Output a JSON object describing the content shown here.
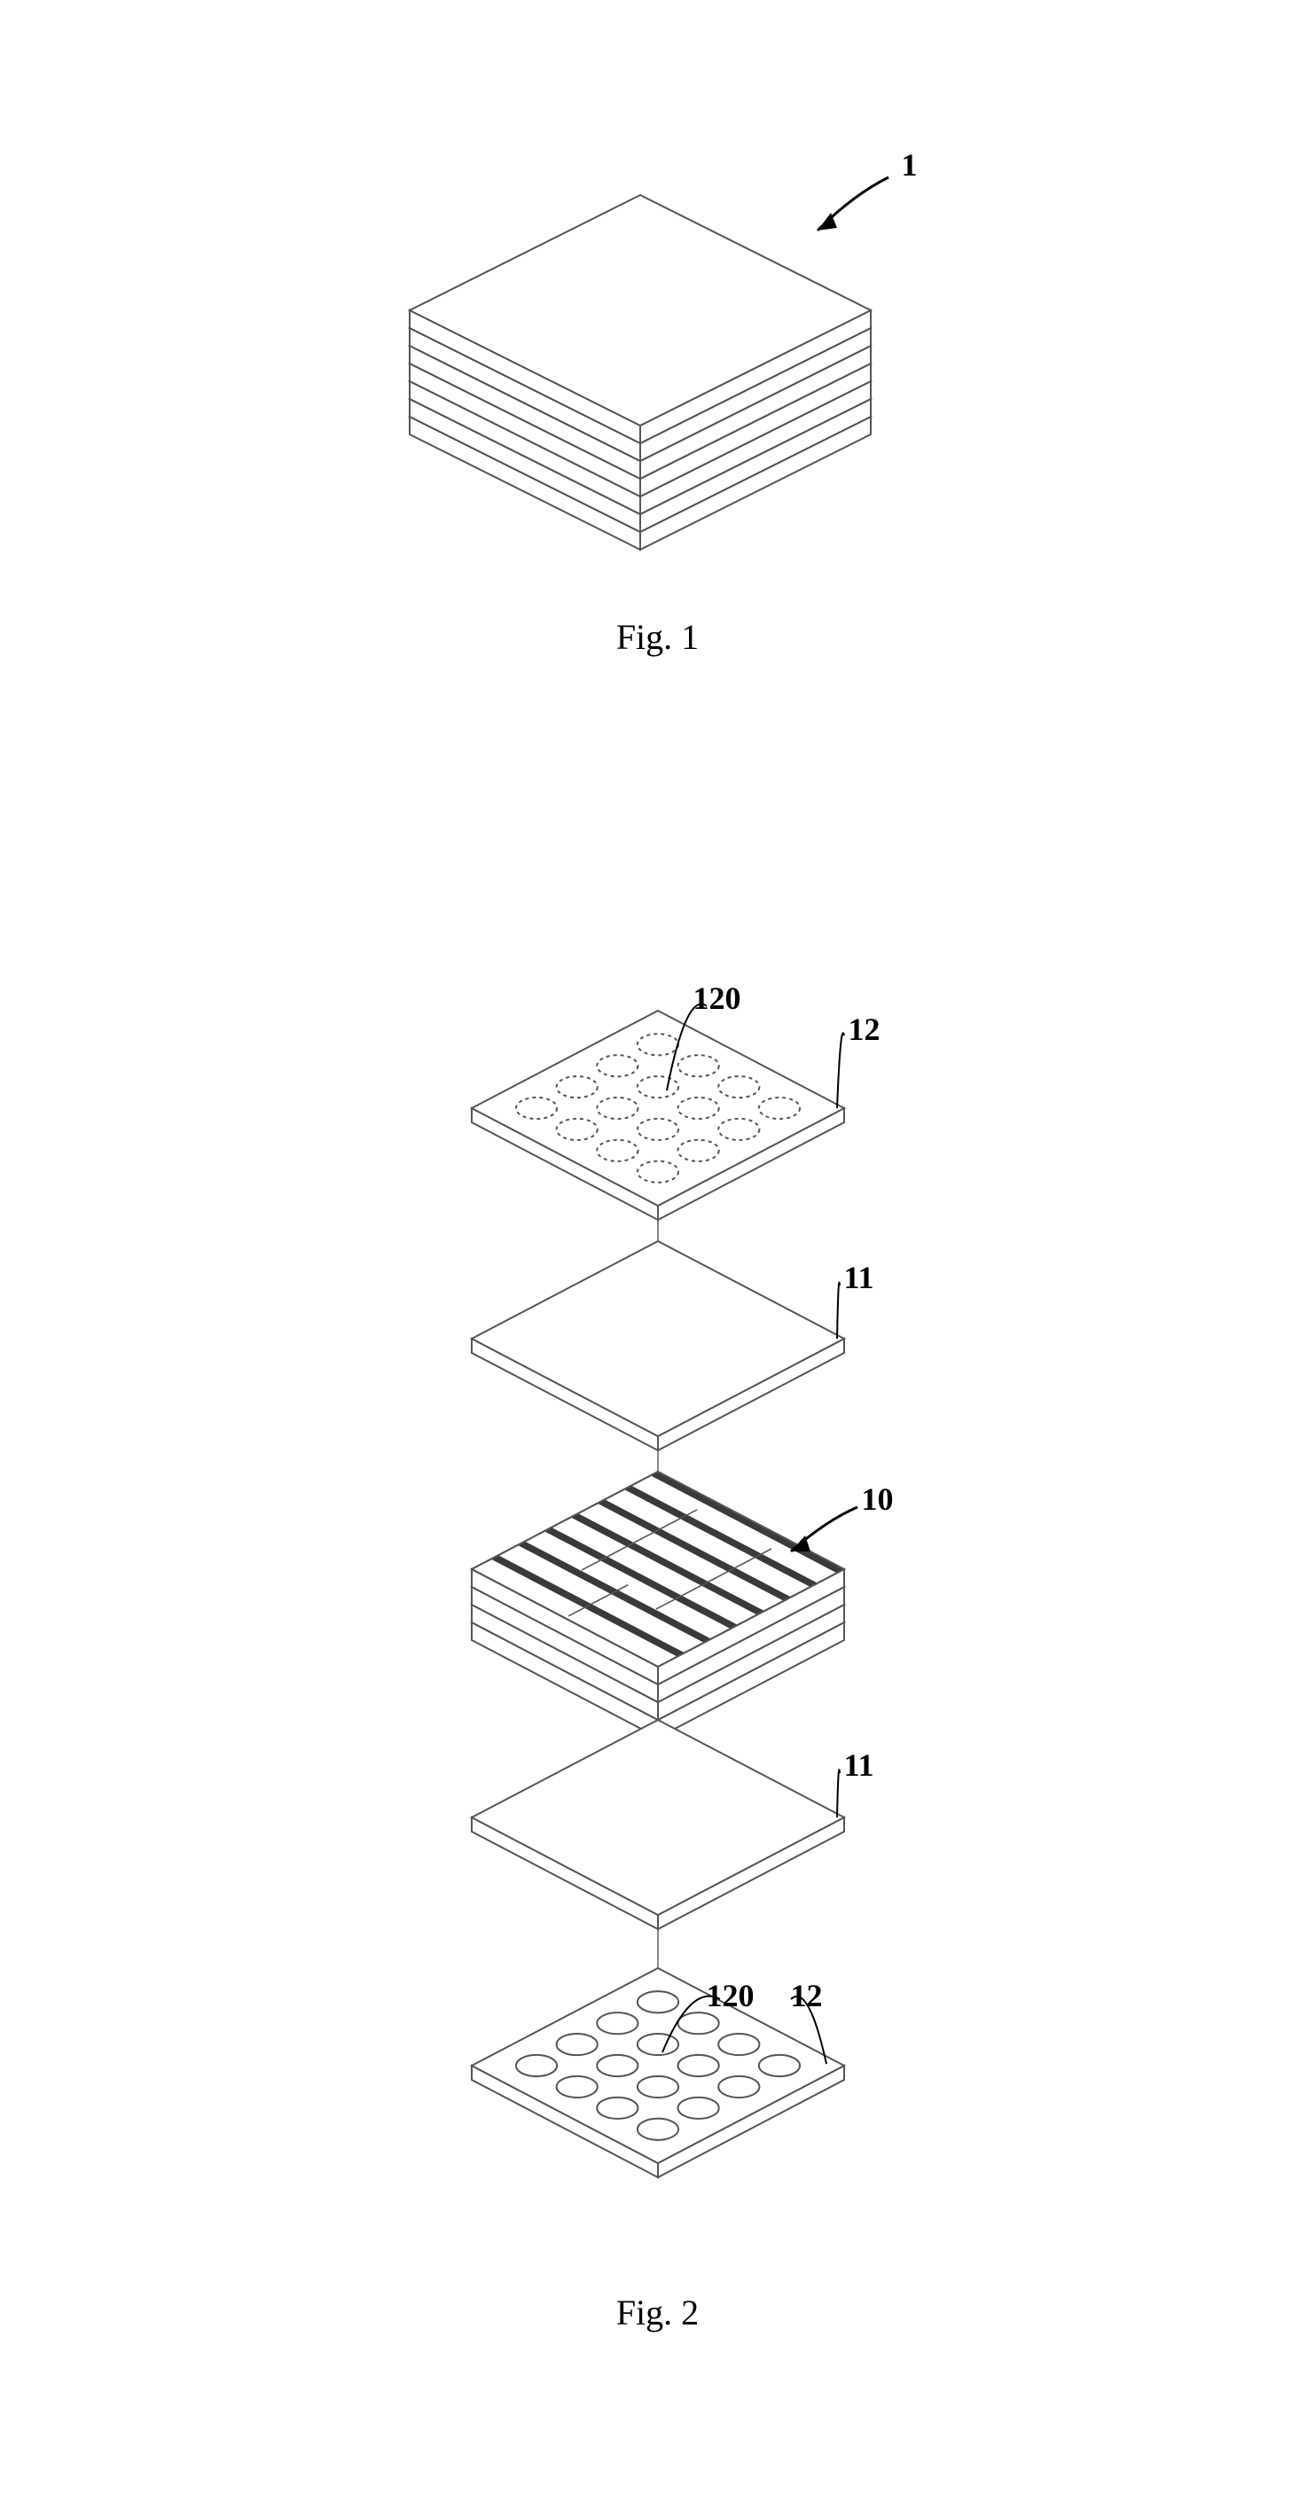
{
  "figure1": {
    "caption": "Fig. 1",
    "assembly_label": "1",
    "layer_count": 7,
    "stroke": "#555555",
    "fill": "#ffffff",
    "stroke_width": 2
  },
  "figure2": {
    "caption": "Fig. 2",
    "stroke": "#555555",
    "fill": "#ffffff",
    "stroke_width": 2,
    "layers": [
      {
        "label": "12",
        "sublabel": "120",
        "type": "circle-plate",
        "circle_style": "dashed"
      },
      {
        "label": "11",
        "type": "plain-plate"
      },
      {
        "label": "10",
        "type": "patterned-stack"
      },
      {
        "label": "11",
        "type": "plain-plate"
      },
      {
        "label": "12",
        "sublabel": "120",
        "type": "circle-plate",
        "circle_style": "solid"
      }
    ],
    "circle_grid": {
      "rows": 4,
      "cols": 4,
      "radius_ratio": 0.11
    },
    "vertical_axis_color": "#888888"
  }
}
